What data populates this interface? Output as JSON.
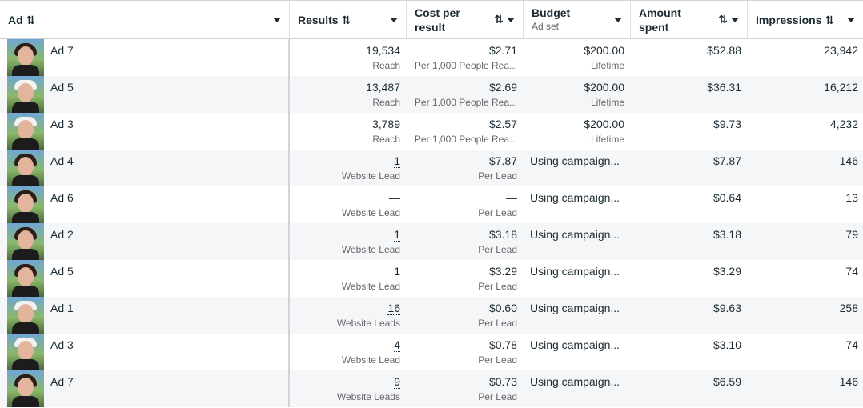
{
  "header": {
    "ad": "Ad",
    "results": "Results",
    "cpr_line1": "Cost per",
    "cpr_line2": "result",
    "budget": "Budget",
    "budget_sub": "Ad set",
    "amount_line1": "Amount",
    "amount_line2": "spent",
    "impressions": "Impressions",
    "sort_glyph": "⇅"
  },
  "rows": [
    {
      "ad": "Ad 7",
      "result": "19,534",
      "result_sub": "Reach",
      "cpr": "$2.71",
      "cpr_sub": "Per 1,000 People Rea...",
      "budget": "$200.00",
      "budget_sub": "Lifetime",
      "amount": "$52.88",
      "impressions": "23,942"
    },
    {
      "ad": "Ad 5",
      "result": "13,487",
      "result_sub": "Reach",
      "cpr": "$2.69",
      "cpr_sub": "Per 1,000 People Rea...",
      "budget": "$200.00",
      "budget_sub": "Lifetime",
      "amount": "$36.31",
      "impressions": "16,212"
    },
    {
      "ad": "Ad 3",
      "result": "3,789",
      "result_sub": "Reach",
      "cpr": "$2.57",
      "cpr_sub": "Per 1,000 People Rea...",
      "budget": "$200.00",
      "budget_sub": "Lifetime",
      "amount": "$9.73",
      "impressions": "4,232"
    },
    {
      "ad": "Ad 4",
      "result": "1",
      "result_sub": "Website Lead",
      "cpr": "$7.87",
      "cpr_sub": "Per Lead",
      "budget": "Using campaign...",
      "budget_sub": "",
      "amount": "$7.87",
      "impressions": "146"
    },
    {
      "ad": "Ad 6",
      "result": "—",
      "result_sub": "Website Lead",
      "cpr": "—",
      "cpr_sub": "Per Lead",
      "budget": "Using campaign...",
      "budget_sub": "",
      "amount": "$0.64",
      "impressions": "13"
    },
    {
      "ad": "Ad 2",
      "result": "1",
      "result_sub": "Website Lead",
      "cpr": "$3.18",
      "cpr_sub": "Per Lead",
      "budget": "Using campaign...",
      "budget_sub": "",
      "amount": "$3.18",
      "impressions": "79"
    },
    {
      "ad": "Ad 5",
      "result": "1",
      "result_sub": "Website Lead",
      "cpr": "$3.29",
      "cpr_sub": "Per Lead",
      "budget": "Using campaign...",
      "budget_sub": "",
      "amount": "$3.29",
      "impressions": "74"
    },
    {
      "ad": "Ad 1",
      "result": "16",
      "result_sub": "Website Leads",
      "cpr": "$0.60",
      "cpr_sub": "Per Lead",
      "budget": "Using campaign...",
      "budget_sub": "",
      "amount": "$9.63",
      "impressions": "258"
    },
    {
      "ad": "Ad 3",
      "result": "4",
      "result_sub": "Website Lead",
      "cpr": "$0.78",
      "cpr_sub": "Per Lead",
      "budget": "Using campaign...",
      "budget_sub": "",
      "amount": "$3.10",
      "impressions": "74"
    },
    {
      "ad": "Ad 7",
      "result": "9",
      "result_sub": "Website Leads",
      "cpr": "$0.73",
      "cpr_sub": "Per Lead",
      "budget": "Using campaign...",
      "budget_sub": "",
      "amount": "$6.59",
      "impressions": "146"
    }
  ]
}
